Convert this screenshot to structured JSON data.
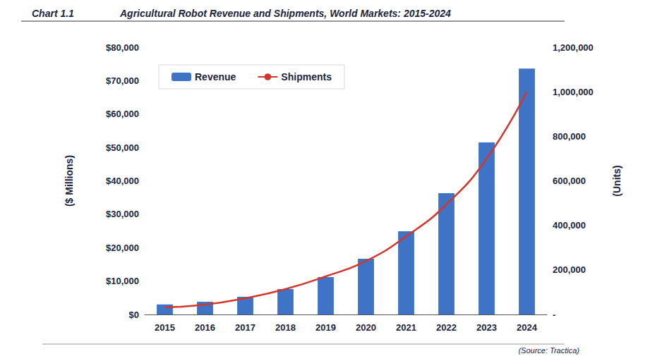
{
  "chart_data": {
    "type": "bar",
    "title": "Agricultural Robot Revenue and Shipments, World Markets: 2015-2024",
    "annotations": [
      "Chart 1.1",
      "(Source: Tractica)"
    ],
    "ylabel": "($ Millions)",
    "y2label": "(Units)",
    "categories": [
      "2015",
      "2016",
      "2017",
      "2018",
      "2019",
      "2020",
      "2021",
      "2022",
      "2023",
      "2024"
    ],
    "series": [
      {
        "name": "Revenue",
        "type": "bar",
        "color": "#3f73c6",
        "values": [
          3000,
          3800,
          5300,
          7600,
          11200,
          16700,
          24900,
          36300,
          51500,
          73600
        ]
      },
      {
        "name": "Shipments",
        "type": "line",
        "axis": "y2",
        "color": "#d3362b",
        "marker": "none",
        "values": [
          32000,
          44000,
          73000,
          114000,
          171000,
          240000,
          351000,
          494000,
          700000,
          1000000
        ]
      }
    ],
    "ylim": [
      0,
      80000
    ],
    "yticks": [
      {
        "value": 0,
        "label": "$0"
      },
      {
        "value": 10000,
        "label": "$10,000"
      },
      {
        "value": 20000,
        "label": "$20,000"
      },
      {
        "value": 30000,
        "label": "$30,000"
      },
      {
        "value": 40000,
        "label": "$40,000"
      },
      {
        "value": 50000,
        "label": "$50,000"
      },
      {
        "value": 60000,
        "label": "$60,000"
      },
      {
        "value": 70000,
        "label": "$70,000"
      },
      {
        "value": 80000,
        "label": "$80,000"
      }
    ],
    "y2lim": [
      0,
      1200000
    ],
    "y2ticks": [
      {
        "value": 0,
        "label": "-"
      },
      {
        "value": 200000,
        "label": "200,000"
      },
      {
        "value": 400000,
        "label": "400,000"
      },
      {
        "value": 600000,
        "label": "600,000"
      },
      {
        "value": 800000,
        "label": "800,000"
      },
      {
        "value": 1000000,
        "label": "1,000,000"
      },
      {
        "value": 1200000,
        "label": "1,200,000"
      }
    ],
    "grid": false,
    "legend": "upper left"
  }
}
